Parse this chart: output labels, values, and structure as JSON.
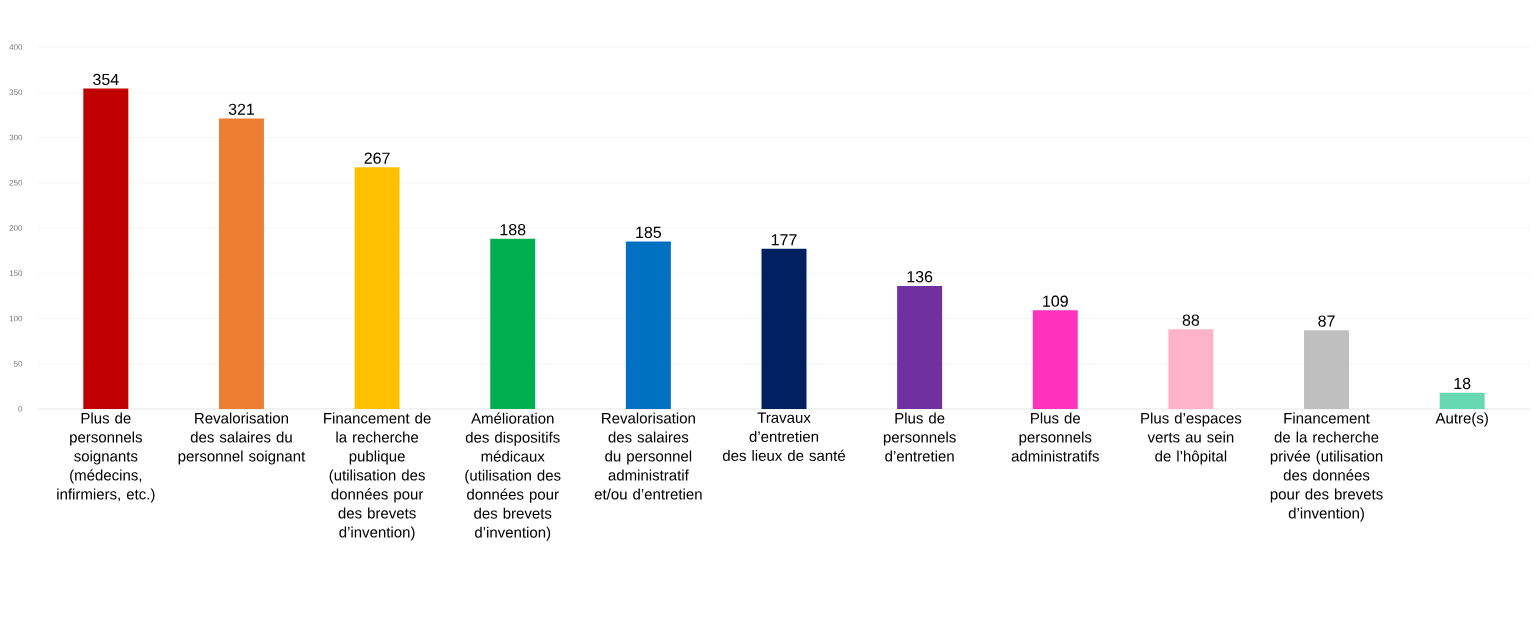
{
  "chart_data": {
    "type": "bar",
    "categories": [
      "Plus de personnels soignants (médecins, infirmiers, etc.)",
      "Revalorisation des salaires du personnel soignant",
      "Financement de la recherche publique (utilisation des données pour des brevets d’invention)",
      "Amélioration des dispositifs médicaux (utilisation des données pour des brevets d’invention)",
      "Revalorisation des salaires du personnel administratif et/ou d’entretien",
      "Travaux d’entretien des lieux de santé",
      "Plus de personnels d’entretien",
      "Plus de personnels administratifs",
      "Plus d’espaces verts au sein de l’hôpital",
      "Financement de la recherche privée (utilisation des données pour des brevets d’invention)",
      "Autre(s)"
    ],
    "values": [
      354,
      321,
      267,
      188,
      185,
      177,
      136,
      109,
      88,
      87,
      18
    ],
    "colors": [
      "#c00000",
      "#ed7d31",
      "#ffc000",
      "#00b050",
      "#0070c0",
      "#002060",
      "#7030a0",
      "#ff33bb",
      "#ffb3c8",
      "#bfbfbf",
      "#66d9b3"
    ],
    "ylim": [
      0,
      400
    ],
    "yticks": [
      0,
      50,
      100,
      150,
      200,
      250,
      300,
      350,
      400
    ],
    "grid": "y",
    "data_labels": true
  }
}
